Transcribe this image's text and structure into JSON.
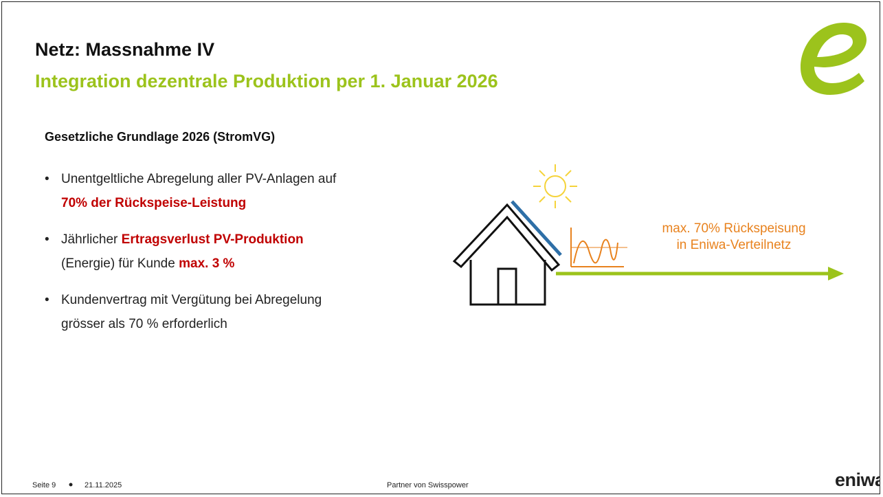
{
  "header": {
    "title": "Netz: Massnahme IV",
    "subtitle": "Integration dezentrale Produktion per 1. Januar 2026"
  },
  "section": {
    "heading": "Gesetzliche Grundlage 2026 (StromVG)",
    "bullets": [
      {
        "lines": [
          [
            "Unentgeltliche Abregelung aller PV-Anlagen auf"
          ],
          [
            "70% der Rückspeise-Leistung"
          ]
        ]
      },
      {
        "lines": [
          [
            "Jährlicher",
            "Ertragsverlust PV-Produktion"
          ],
          [
            "(Energie) für Kunde",
            "max. 3 %"
          ]
        ]
      },
      {
        "lines": [
          [
            "Kundenvertrag mit Vergütung bei Abregelung"
          ],
          [
            "grösser als 70 % erforderlich"
          ]
        ]
      }
    ]
  },
  "diagram": {
    "label": [
      "max. 70% Rückspeisung",
      "in Eniwa-Verteilnetz"
    ]
  },
  "footer": {
    "page": "Seite 9",
    "date": "21.11.2025",
    "partner": "Partner von Swisspower",
    "brand": "eniwa"
  }
}
